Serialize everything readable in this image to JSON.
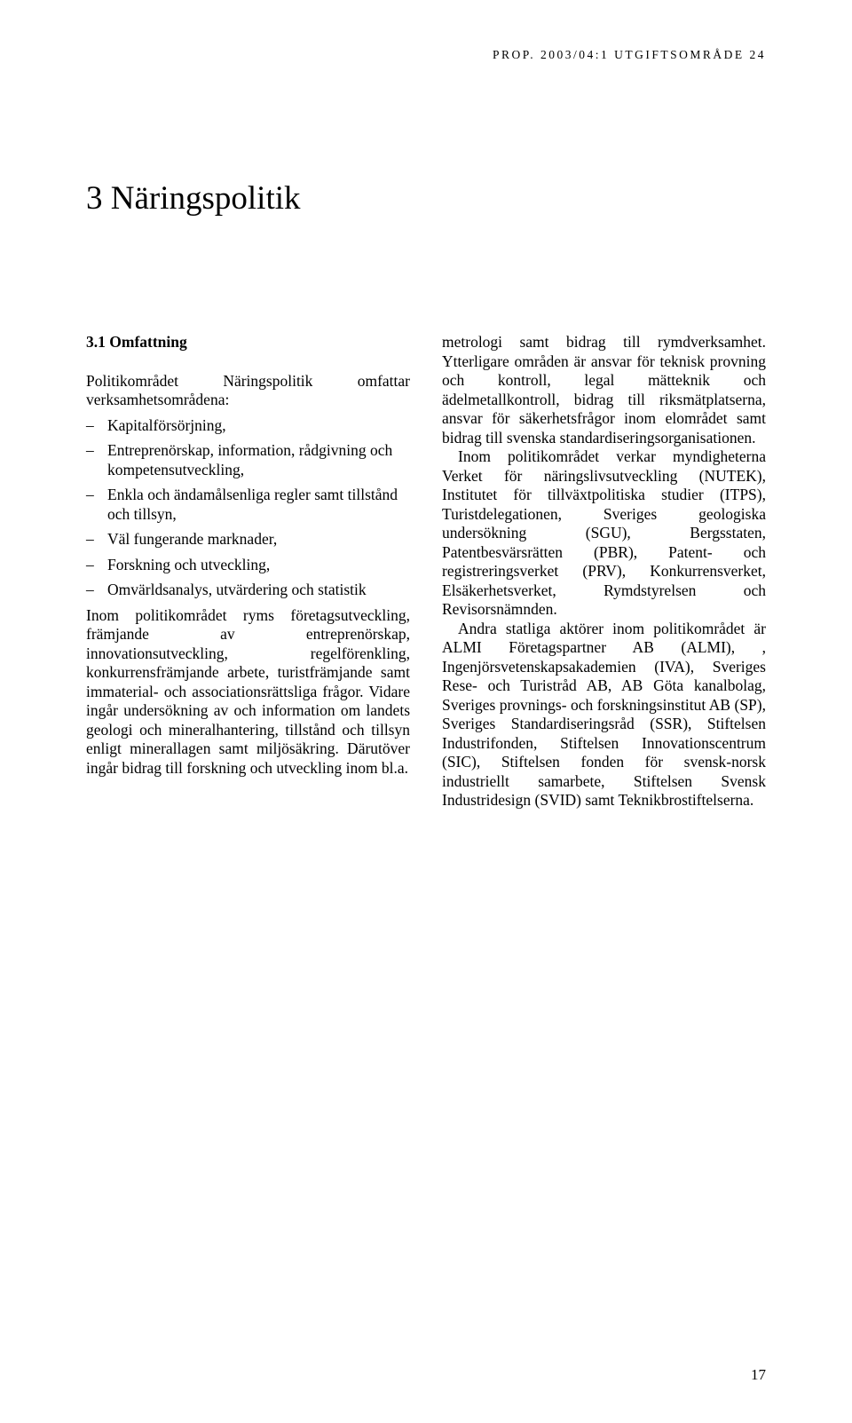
{
  "running_head": "PROP. 2003/04:1 UTGIFTSOMRÅDE 24",
  "chapter_title": "3 Näringspolitik",
  "section_head": "3.1    Omfattning",
  "left": {
    "lead": "Politikområdet Näringspolitik omfattar verksamhetsområdena:",
    "bullets": [
      "Kapitalförsörjning,",
      "Entreprenörskap, information, rådgivning och kompetensutveckling,",
      "Enkla och ändamålsenliga regler samt tillstånd och tillsyn,",
      "Väl fungerande marknader,",
      "Forskning och utveckling,",
      "Omvärldsanalys, utvärdering och statistik"
    ],
    "body": "Inom politikområdet ryms företagsutveckling, främjande av entreprenörskap, innovationsutveckling, regelförenkling, konkurrensfrämjande arbete, turistfrämjande samt immaterial- och associationsrättsliga frågor. Vidare ingår undersökning av och information om landets geologi och mineralhantering, tillstånd och tillsyn enligt minerallagen samt miljösäkring. Därutöver ingår bidrag till forskning och utveckling inom bl.a."
  },
  "right": {
    "p1": "metrologi samt bidrag till rymdverksamhet. Ytterligare områden är ansvar för teknisk provning och kontroll, legal mätteknik och ädelmetallkontroll, bidrag till riksmätplatserna, ansvar för säkerhetsfrågor inom elområdet samt bidrag till svenska standardiseringsorganisationen.",
    "p2": "Inom politikområdet verkar myndigheterna Verket för näringslivsutveckling (NUTEK), Institutet för tillväxtpolitiska studier (ITPS), Turistdelegationen, Sveriges geologiska undersökning (SGU), Bergsstaten, Patentbesvärsrätten (PBR), Patent- och registreringsverket (PRV), Konkurrensverket, Elsäkerhetsverket, Rymdstyrelsen och Revisorsnämnden.",
    "p3": "Andra statliga aktörer inom politikområdet är ALMI Företagspartner AB (ALMI), , Ingenjörsvetenskapsakademien (IVA), Sveriges Rese- och Turistråd AB, AB Göta kanalbolag, Sveriges provnings- och forskningsinstitut AB (SP), Sveriges Standardiseringsråd (SSR), Stiftelsen Industrifonden, Stiftelsen Innovationscentrum (SIC), Stiftelsen fonden för svensk-norsk industriellt samarbete, Stiftelsen Svensk Industridesign (SVID) samt Teknikbrostiftelserna."
  },
  "page_number": "17"
}
